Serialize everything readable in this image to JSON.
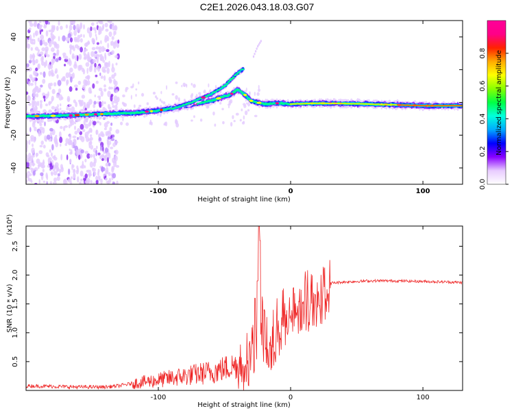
{
  "page": {
    "title": "C2E1.2026.043.18.03.G07"
  },
  "chart_data": [
    {
      "type": "heatmap",
      "xlabel": "Height of straight line (km)",
      "ylabel": "Frequency (Hz)",
      "xlim": [
        -200,
        130
      ],
      "ylim": [
        -50,
        50
      ],
      "xticks": [
        -100,
        0,
        100
      ],
      "yticks": [
        -40,
        -20,
        0,
        20,
        40
      ],
      "colorbar": {
        "label": "Normalized spectral amplitude",
        "range": [
          0,
          1
        ],
        "ticks": [
          0.0,
          0.2,
          0.4,
          0.6,
          0.8
        ],
        "tick_labels": [
          "0.0",
          "0.2",
          "0.4",
          "0.6",
          "0.8"
        ],
        "colormap": [
          "#ffffff",
          "#e8ccff",
          "#8800ff",
          "#0000ff",
          "#00aaff",
          "#00ffdd",
          "#00ff44",
          "#88ff00",
          "#ffff00",
          "#ffaa00",
          "#ff2200",
          "#ff0088",
          "#ff0099"
        ]
      },
      "ridges": [
        {
          "name": "main",
          "points": [
            [
              -200,
              -8.5
            ],
            [
              -170,
              -8
            ],
            [
              -140,
              -7
            ],
            [
              -120,
              -6.5
            ],
            [
              -100,
              -5
            ],
            [
              -80,
              -2
            ],
            [
              -60,
              1
            ],
            [
              -45,
              5
            ],
            [
              -40,
              8
            ],
            [
              -35,
              5
            ],
            [
              -30,
              1
            ],
            [
              -20,
              -1
            ],
            [
              -10,
              -0.5
            ],
            [
              0,
              -1
            ],
            [
              20,
              -0.5
            ],
            [
              50,
              -0.8
            ],
            [
              80,
              -1.5
            ],
            [
              100,
              -2
            ],
            [
              130,
              -2
            ]
          ]
        },
        {
          "name": "upper-branch",
          "points": [
            [
              -90,
              -4
            ],
            [
              -75,
              0
            ],
            [
              -60,
              5
            ],
            [
              -50,
              10
            ],
            [
              -45,
              14
            ],
            [
              -40,
              18
            ],
            [
              -35,
              21
            ]
          ]
        },
        {
          "name": "faint-streak",
          "points": [
            [
              -28,
              28
            ],
            [
              -25,
              34
            ],
            [
              -22,
              38
            ]
          ]
        }
      ],
      "scatter_region": {
        "x_range": [
          -200,
          -130
        ],
        "y_range": [
          -50,
          50
        ]
      }
    },
    {
      "type": "line",
      "xlabel": "Height of straight line (km)",
      "ylabel": "SNR (10 * v/v)",
      "y_multiplier": "(x10⁴)",
      "xlim": [
        -200,
        130
      ],
      "ylim": [
        0,
        2.85
      ],
      "xticks": [
        -100,
        0,
        100
      ],
      "yticks": [
        0.5,
        1.0,
        1.5,
        2.0,
        2.5
      ],
      "ytick_labels": [
        "0.5",
        "1.0",
        "1.5",
        "2.0",
        "2.5"
      ],
      "color": "#ee2222",
      "envelope": [
        [
          -200,
          0.08
        ],
        [
          -180,
          0.07
        ],
        [
          -160,
          0.06
        ],
        [
          -140,
          0.06
        ],
        [
          -130,
          0.08
        ],
        [
          -120,
          0.12
        ],
        [
          -100,
          0.18
        ],
        [
          -80,
          0.25
        ],
        [
          -60,
          0.32
        ],
        [
          -50,
          0.38
        ],
        [
          -40,
          0.45
        ],
        [
          -33,
          0.6
        ],
        [
          -29,
          0.8
        ],
        [
          -26,
          1.15
        ],
        [
          -24,
          1.5
        ],
        [
          -22,
          1.3
        ],
        [
          -20,
          0.9
        ],
        [
          -15,
          1.0
        ],
        [
          -10,
          1.2
        ],
        [
          -5,
          1.35
        ],
        [
          0,
          1.45
        ],
        [
          10,
          1.62
        ],
        [
          20,
          1.78
        ],
        [
          30,
          1.86
        ],
        [
          40,
          1.88
        ],
        [
          60,
          1.9
        ],
        [
          80,
          1.9
        ],
        [
          100,
          1.89
        ],
        [
          120,
          1.88
        ],
        [
          130,
          1.87
        ]
      ],
      "peaks": [
        [
          -24,
          2.85
        ],
        [
          -23,
          2.6
        ],
        [
          -25,
          1.9
        ],
        [
          -27,
          1.6
        ],
        [
          -20,
          1.4
        ]
      ]
    }
  ]
}
